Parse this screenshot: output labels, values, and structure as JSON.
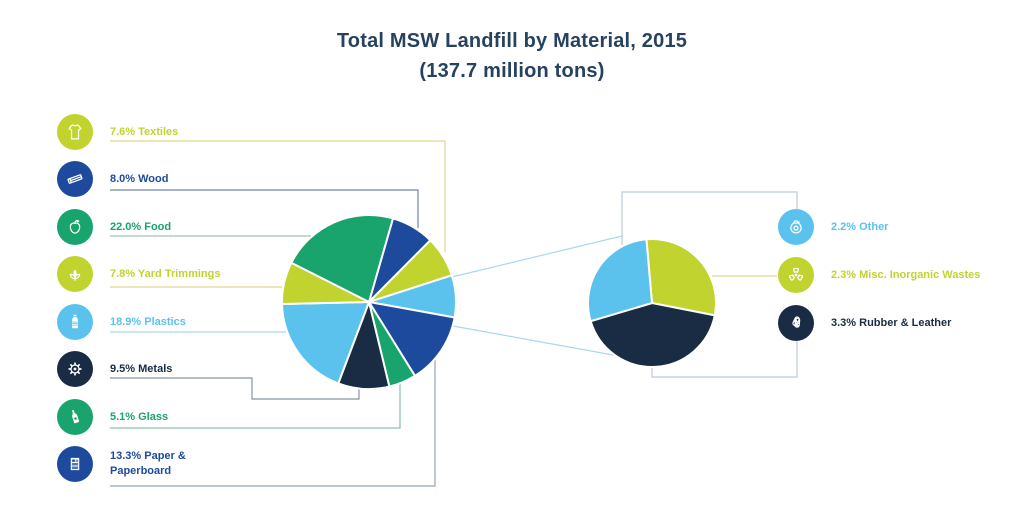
{
  "palette": {
    "chartreuse": "#c1d32f",
    "blue": "#1e4a9d",
    "green": "#18a46c",
    "lightblue": "#5bc2ee",
    "navy": "#192c44",
    "title_text": "#27425f"
  },
  "chart_data": [
    {
      "type": "pie",
      "name": "main-pie",
      "title": "Total MSW Landfill by Material, 2015",
      "subtitle": "(137.7 million tons)",
      "units": "percent of total",
      "total": 100.0,
      "start_angle_deg": 16,
      "slices": [
        {
          "label": "Wood",
          "value": 8.0,
          "color": "blue"
        },
        {
          "label": "Textiles",
          "value": 7.6,
          "color": "chartreuse"
        },
        {
          "label": "Detail group (Other + Misc. Inorganic Wastes + Rubber & Leather)",
          "value": 7.8,
          "color": "lightblue"
        },
        {
          "label": "Paper & Paperboard",
          "value": 13.3,
          "color": "blue"
        },
        {
          "label": "Glass",
          "value": 5.1,
          "color": "green"
        },
        {
          "label": "Metals",
          "value": 9.5,
          "color": "navy"
        },
        {
          "label": "Plastics",
          "value": 18.9,
          "color": "lightblue"
        },
        {
          "label": "Yard Trimmings",
          "value": 7.8,
          "color": "chartreuse"
        },
        {
          "label": "Food",
          "value": 22.0,
          "color": "green"
        }
      ]
    },
    {
      "type": "pie",
      "name": "detail-pie",
      "title": "Detail of combined small categories",
      "units": "percent of total",
      "total": 7.8,
      "start_angle_deg": -5,
      "slices": [
        {
          "label": "Misc. Inorganic Wastes",
          "value": 2.3,
          "color": "chartreuse"
        },
        {
          "label": "Rubber & Leather",
          "value": 3.3,
          "color": "navy"
        },
        {
          "label": "Other",
          "value": 2.2,
          "color": "lightblue"
        }
      ]
    }
  ],
  "legend_left": {
    "items": [
      {
        "label": "7.6% Textiles",
        "color": "chartreuse",
        "icon": "tshirt"
      },
      {
        "label": "8.0% Wood",
        "color": "blue",
        "icon": "plank"
      },
      {
        "label": "22.0% Food",
        "color": "green",
        "icon": "apple"
      },
      {
        "label": "7.8% Yard Trimmings",
        "color": "chartreuse",
        "icon": "leaves"
      },
      {
        "label": "18.9% Plastics",
        "color": "lightblue",
        "icon": "plastic-bottle"
      },
      {
        "label": "9.5% Metals",
        "color": "navy",
        "icon": "gear"
      },
      {
        "label": "5.1% Glass",
        "color": "green",
        "icon": "glass-bottle"
      },
      {
        "label": "13.3% Paper & Paperboard",
        "color": "blue",
        "icon": "newspaper"
      }
    ]
  },
  "legend_right": {
    "items": [
      {
        "label": "2.2% Other",
        "color": "lightblue",
        "icon": "sack"
      },
      {
        "label": "2.3% Misc. Inorganic Wastes",
        "color": "chartreuse",
        "icon": "radiation"
      },
      {
        "label": "3.3% Rubber & Leather",
        "color": "navy",
        "icon": "gloves"
      }
    ]
  }
}
